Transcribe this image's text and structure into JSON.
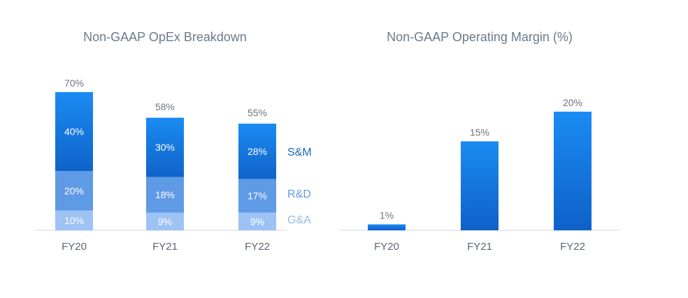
{
  "colors": {
    "sm_top": "#1a8bf3",
    "sm_bottom": "#1063c9",
    "rd": "#5f9ae6",
    "ga": "#9dc3f5",
    "margin_top": "#1a8bf3",
    "margin_bottom": "#0f61c8",
    "axis": "#dfe4ea",
    "legend_sm": "#1b67bd",
    "legend_rd": "#5f98e0",
    "legend_ga": "#92bcee"
  },
  "chart_data": [
    {
      "type": "bar",
      "stacked": true,
      "title": "Non-GAAP OpEx Breakdown",
      "categories": [
        "FY20",
        "FY21",
        "FY22"
      ],
      "series": [
        {
          "name": "G&A",
          "values": [
            10,
            9,
            9
          ],
          "labels": [
            "10%",
            "9%",
            "9%"
          ]
        },
        {
          "name": "R&D",
          "values": [
            20,
            18,
            17
          ],
          "labels": [
            "20%",
            "18%",
            "17%"
          ]
        },
        {
          "name": "S&M",
          "values": [
            40,
            30,
            28
          ],
          "labels": [
            "40%",
            "30%",
            "28%"
          ]
        }
      ],
      "totals": [
        70,
        58,
        55
      ],
      "total_labels": [
        "70%",
        "58%",
        "55%"
      ],
      "ylim": [
        0,
        70
      ],
      "xlabel": "",
      "ylabel": "",
      "grid": false,
      "legend": "right"
    },
    {
      "type": "bar",
      "title": "Non-GAAP Operating Margin (%)",
      "categories": [
        "FY20",
        "FY21",
        "FY22"
      ],
      "values": [
        1,
        15,
        20
      ],
      "value_labels": [
        "1%",
        "15%",
        "20%"
      ],
      "ylim": [
        0,
        20
      ],
      "xlabel": "",
      "ylabel": "",
      "grid": false
    }
  ]
}
